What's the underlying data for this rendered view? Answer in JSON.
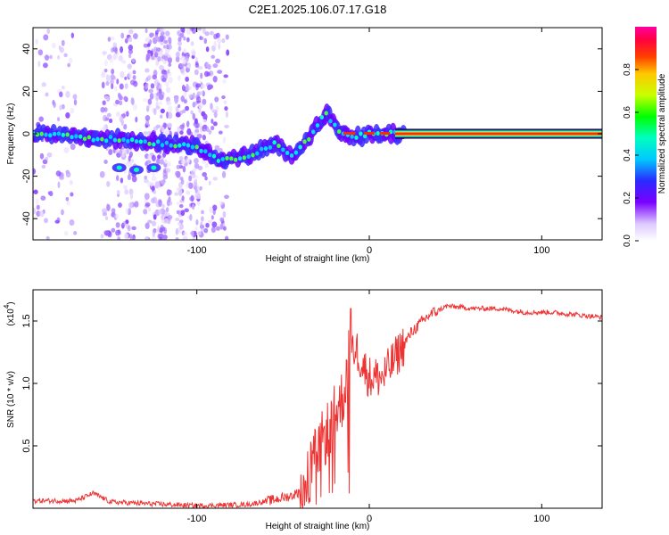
{
  "title": "C2E1.2025.106.07.17.G18",
  "chart_data": [
    {
      "type": "heatmap",
      "xlabel": "Height of straight line (km)",
      "ylabel": "Frequency (Hz)",
      "xlim": [
        -195,
        135
      ],
      "ylim": [
        -50,
        50
      ],
      "xticks": [
        -100,
        0,
        100
      ],
      "yticks": [
        -40,
        -20,
        0,
        20,
        40
      ],
      "colorbar": {
        "label": "Normalized spectral amplitude",
        "range": [
          0,
          1
        ],
        "ticks": [
          0.0,
          0.2,
          0.4,
          0.6,
          0.8
        ]
      },
      "ridge": [
        {
          "x": -195,
          "y": 0
        },
        {
          "x": -180,
          "y": 0
        },
        {
          "x": -160,
          "y": -2
        },
        {
          "x": -140,
          "y": -3
        },
        {
          "x": -100,
          "y": -6
        },
        {
          "x": -85,
          "y": -13
        },
        {
          "x": -70,
          "y": -10
        },
        {
          "x": -55,
          "y": -5
        },
        {
          "x": -45,
          "y": -10
        },
        {
          "x": -35,
          "y": -2
        },
        {
          "x": -25,
          "y": 10
        },
        {
          "x": -18,
          "y": 1
        },
        {
          "x": -10,
          "y": -2
        },
        {
          "x": 0,
          "y": 0
        },
        {
          "x": 10,
          "y": 0
        },
        {
          "x": 20,
          "y": 0
        },
        {
          "x": 135,
          "y": 0
        }
      ],
      "ridge_secondary": [
        {
          "x": -145,
          "y": -16
        },
        {
          "x": -135,
          "y": -17
        },
        {
          "x": -125,
          "y": -16
        }
      ]
    },
    {
      "type": "line",
      "xlabel": "Height of straight line (km)",
      "ylabel": "SNR (10 * v/v)",
      "multiplier": "(x10",
      "multiplier_exp": "4",
      "multiplier_close": ")",
      "xlim": [
        -195,
        135
      ],
      "ylim": [
        0,
        1.75
      ],
      "xticks": [
        -100,
        0,
        100
      ],
      "yticks": [
        0.5,
        1.0,
        1.5
      ],
      "ytick_labels": [
        "0.5",
        "1.0",
        "1.5"
      ],
      "series": [
        {
          "color": "#ee3333",
          "points": [
            {
              "x": -195,
              "y": 0.06
            },
            {
              "x": -170,
              "y": 0.06
            },
            {
              "x": -160,
              "y": 0.12
            },
            {
              "x": -150,
              "y": 0.05
            },
            {
              "x": -100,
              "y": 0.02
            },
            {
              "x": -70,
              "y": 0.03
            },
            {
              "x": -55,
              "y": 0.07
            },
            {
              "x": -45,
              "y": 0.1
            },
            {
              "x": -38,
              "y": 0.15
            },
            {
              "x": -30,
              "y": 0.45
            },
            {
              "x": -25,
              "y": 0.6
            },
            {
              "x": -20,
              "y": 0.75
            },
            {
              "x": -15,
              "y": 0.9
            },
            {
              "x": -12,
              "y": 1.2
            },
            {
              "x": -8,
              "y": 1.3
            },
            {
              "x": -4,
              "y": 1.15
            },
            {
              "x": 0,
              "y": 1.05
            },
            {
              "x": 8,
              "y": 1.05
            },
            {
              "x": 15,
              "y": 1.2
            },
            {
              "x": 25,
              "y": 1.42
            },
            {
              "x": 35,
              "y": 1.55
            },
            {
              "x": 45,
              "y": 1.62
            },
            {
              "x": 60,
              "y": 1.6
            },
            {
              "x": 75,
              "y": 1.6
            },
            {
              "x": 90,
              "y": 1.57
            },
            {
              "x": 105,
              "y": 1.57
            },
            {
              "x": 120,
              "y": 1.55
            },
            {
              "x": 135,
              "y": 1.53
            }
          ]
        }
      ]
    }
  ]
}
